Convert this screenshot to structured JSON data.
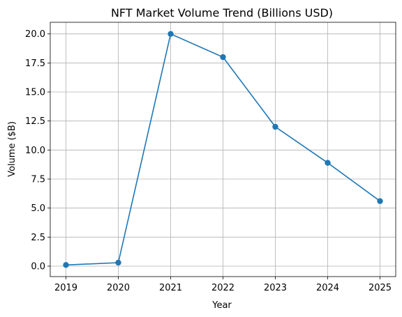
{
  "chart_data": {
    "type": "line",
    "title": "NFT Market Volume Trend (Billions USD)",
    "xlabel": "Year",
    "ylabel": "Volume ($B)",
    "x": [
      "2019",
      "2020",
      "2021",
      "2022",
      "2023",
      "2024",
      "2025"
    ],
    "series": [
      {
        "values": [
          0.1,
          0.3,
          20.0,
          18.0,
          12.0,
          8.9,
          5.6
        ],
        "color": "#1f77b4",
        "marker": "circle"
      }
    ],
    "ylim": [
      -0.9,
      21.0
    ],
    "yticks": [
      "0.0",
      "2.5",
      "5.0",
      "7.5",
      "10.0",
      "12.5",
      "15.0",
      "17.5",
      "20.0"
    ],
    "grid": true,
    "legend": "none"
  }
}
